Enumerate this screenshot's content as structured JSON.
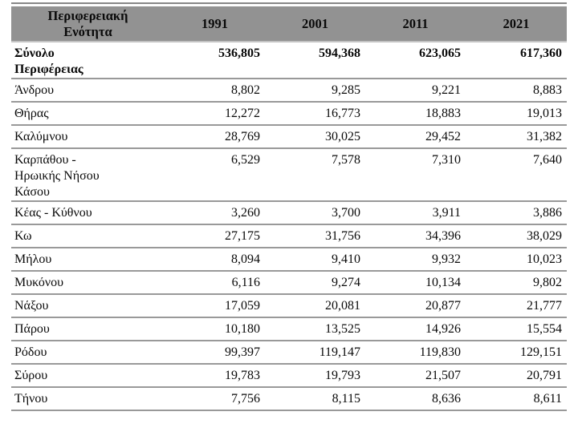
{
  "table": {
    "header": {
      "region_label": "Περιφερειακή Ενότητα",
      "years": [
        "1991",
        "2001",
        "2011",
        "2021"
      ]
    },
    "rows": [
      {
        "label": "Σύνολο Περιφέρειας",
        "bold": true,
        "values": [
          "536,805",
          "594,368",
          "623,065",
          "617,360"
        ]
      },
      {
        "label": "Άνδρου",
        "values": [
          "8,802",
          "9,285",
          "9,221",
          "8,883"
        ]
      },
      {
        "label": "Θήρας",
        "values": [
          "12,272",
          "16,773",
          "18,883",
          "19,013"
        ]
      },
      {
        "label": "Καλύμνου",
        "values": [
          "28,769",
          "30,025",
          "29,452",
          "31,382"
        ]
      },
      {
        "label": "Καρπάθου - Ηρωικής Νήσου Κάσου",
        "values": [
          "6,529",
          "7,578",
          "7,310",
          "7,640"
        ]
      },
      {
        "label": "Κέας - Κύθνου",
        "values": [
          "3,260",
          "3,700",
          "3,911",
          "3,886"
        ]
      },
      {
        "label": "Κω",
        "values": [
          "27,175",
          "31,756",
          "34,396",
          "38,029"
        ]
      },
      {
        "label": "Μήλου",
        "values": [
          "8,094",
          "9,410",
          "9,932",
          "10,023"
        ]
      },
      {
        "label": "Μυκόνου",
        "values": [
          "6,116",
          "9,274",
          "10,134",
          "9,802"
        ]
      },
      {
        "label": "Νάξου",
        "values": [
          "17,059",
          "20,081",
          "20,877",
          "21,777"
        ]
      },
      {
        "label": "Πάρου",
        "values": [
          "10,180",
          "13,525",
          "14,926",
          "15,554"
        ]
      },
      {
        "label": "Ρόδου",
        "values": [
          "99,397",
          "119,147",
          "119,830",
          "129,151"
        ]
      },
      {
        "label": "Σύρου",
        "values": [
          "19,783",
          "19,793",
          "21,507",
          "20,791"
        ]
      },
      {
        "label": "Τήνου",
        "values": [
          "7,756",
          "8,115",
          "8,636",
          "8,611"
        ]
      }
    ],
    "colors": {
      "header_bg": "#929292",
      "separator": "#999999",
      "top_border": "#878787",
      "text": "#0a0a0a"
    }
  }
}
